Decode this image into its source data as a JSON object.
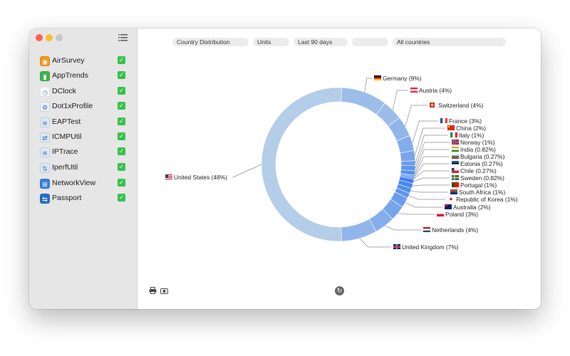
{
  "sidebar": {
    "items": [
      {
        "label": "AirSurvey",
        "icon": "airsurvey-icon",
        "color": "#f29a1f",
        "glyph": "◉"
      },
      {
        "label": "AppTrends",
        "icon": "apptrends-icon",
        "color": "#3cb54a",
        "glyph": "▮"
      },
      {
        "label": "DClock",
        "icon": "dclock-icon",
        "color": "#ffffff",
        "glyph": "◷"
      },
      {
        "label": "Dot1xProfile",
        "icon": "dot1xprofile-icon",
        "color": "#e9f2fb",
        "glyph": "⚙"
      },
      {
        "label": "EAPTest",
        "icon": "eaptest-icon",
        "color": "#dbe9f7",
        "glyph": "≋"
      },
      {
        "label": "ICMPUtil",
        "icon": "icmputil-icon",
        "color": "#dbe9f7",
        "glyph": "⇄"
      },
      {
        "label": "IPTrace",
        "icon": "iptrace-icon",
        "color": "#dbe9f7",
        "glyph": "≋"
      },
      {
        "label": "IperfUtil",
        "icon": "iperfutil-icon",
        "color": "#dbe9f7",
        "glyph": "⇅"
      },
      {
        "label": "NetworkView",
        "icon": "networkview-icon",
        "color": "#3b7fd6",
        "glyph": "⊞"
      },
      {
        "label": "Passport",
        "icon": "passport-icon",
        "color": "#2a6fc9",
        "glyph": "⇆"
      }
    ]
  },
  "toolbar": {
    "report": "Country Distribution",
    "measure": "Units",
    "period": "Last 90 days",
    "blank": "",
    "filter": "All countries"
  },
  "colors": {
    "ring_light": "#b4cde9",
    "ring_mid": "#6fa4ec",
    "ring_dark": "#1565f0"
  },
  "chart_data": {
    "type": "pie",
    "donut": true,
    "series": [
      {
        "name": "United States",
        "value": 48,
        "label": "United States (48%)",
        "flag": "us"
      },
      {
        "name": "Germany",
        "value": 9,
        "label": "Germany (9%)",
        "flag": "de"
      },
      {
        "name": "Austria",
        "value": 4,
        "label": "Austria (4%)",
        "flag": "at"
      },
      {
        "name": "Switzerland",
        "value": 4,
        "label": "Switzerland (4%)",
        "flag": "ch"
      },
      {
        "name": "France",
        "value": 3,
        "label": "France (3%)",
        "flag": "fr"
      },
      {
        "name": "China",
        "value": 2,
        "label": "China (2%)",
        "flag": "cn"
      },
      {
        "name": "Italy",
        "value": 1,
        "label": "Italy (1%)",
        "flag": "it"
      },
      {
        "name": "Norway",
        "value": 1,
        "label": "Norway (1%)",
        "flag": "no"
      },
      {
        "name": "India",
        "value": 0.82,
        "label": "India (0.82%)",
        "flag": "in"
      },
      {
        "name": "Bulgaria",
        "value": 0.27,
        "label": "Bulgaria (0.27%)",
        "flag": "bg"
      },
      {
        "name": "Estonia",
        "value": 0.27,
        "label": "Estonia (0.27%)",
        "flag": "ee"
      },
      {
        "name": "Chile",
        "value": 0.27,
        "label": "Chile (0.27%)",
        "flag": "cl"
      },
      {
        "name": "Sweden",
        "value": 0.82,
        "label": "Sweden (0.82%)",
        "flag": "se"
      },
      {
        "name": "Portugal",
        "value": 1,
        "label": "Portugal (1%)",
        "flag": "pt"
      },
      {
        "name": "South Africa",
        "value": 1,
        "label": "South Africa (1%)",
        "flag": "za"
      },
      {
        "name": "Republic of Korea",
        "value": 1,
        "label": "Republic of Korea (1%)",
        "flag": "kr"
      },
      {
        "name": "Australia",
        "value": 2,
        "label": "Australia (2%)",
        "flag": "au"
      },
      {
        "name": "Poland",
        "value": 3,
        "label": "Poland (3%)",
        "flag": "pl"
      },
      {
        "name": "Netherlands",
        "value": 4,
        "label": "Netherlands (4%)",
        "flag": "nl"
      },
      {
        "name": "United Kingdom",
        "value": 7,
        "label": "United Kingdom (7%)",
        "flag": "gb"
      }
    ]
  }
}
